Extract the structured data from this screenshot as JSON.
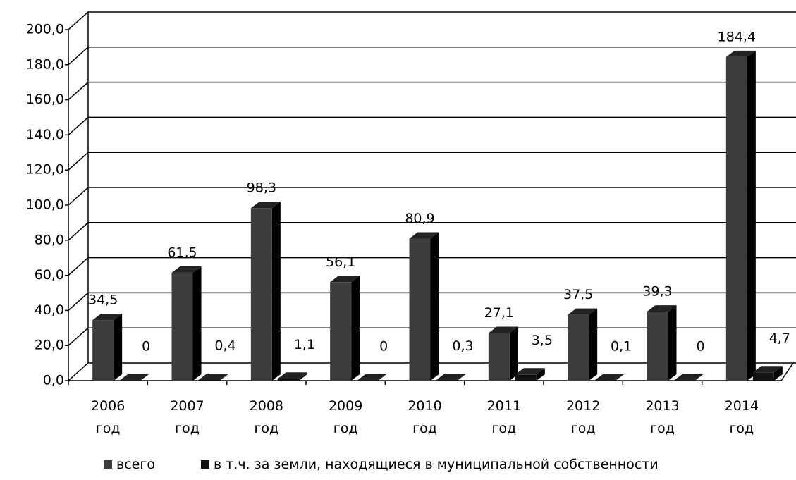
{
  "chart_data": {
    "type": "bar3d",
    "categories": [
      "2006 год",
      "2007 год",
      "2008 год",
      "2009 год",
      "2010 год",
      "2011 год",
      "2012 год",
      "2013 год",
      "2014 год"
    ],
    "series": [
      {
        "name": "всего",
        "color": "#3c3c3c",
        "values": [
          34.5,
          61.5,
          98.3,
          56.1,
          80.9,
          27.1,
          37.5,
          39.3,
          184.4
        ],
        "value_labels": [
          "34,5",
          "61,5",
          "98,3",
          "56,1",
          "80,9",
          "27,1",
          "37,5",
          "39,3",
          "184,4"
        ]
      },
      {
        "name": "в т.ч. за земли, находящиеся в муниципальной собственности",
        "color": "#111111",
        "values": [
          0,
          0.4,
          1.1,
          0,
          0.3,
          3.5,
          0.1,
          0,
          4.7
        ],
        "value_labels": [
          "0",
          "0,4",
          "1,1",
          "0",
          "0,3",
          "3,5",
          "0,1",
          "0",
          "4,7"
        ]
      }
    ],
    "ylim": [
      0,
      200
    ],
    "yticks": [
      {
        "value": 0,
        "label": "0,0"
      },
      {
        "value": 20,
        "label": "20,0"
      },
      {
        "value": 40,
        "label": "40,0"
      },
      {
        "value": 60,
        "label": "60,0"
      },
      {
        "value": 80,
        "label": "80,0"
      },
      {
        "value": 100,
        "label": "100,0"
      },
      {
        "value": 120,
        "label": "120,0"
      },
      {
        "value": 140,
        "label": "140,0"
      },
      {
        "value": 160,
        "label": "160,0"
      },
      {
        "value": 180,
        "label": "180,0"
      },
      {
        "value": 200,
        "label": "200,0"
      }
    ],
    "grid": true
  }
}
